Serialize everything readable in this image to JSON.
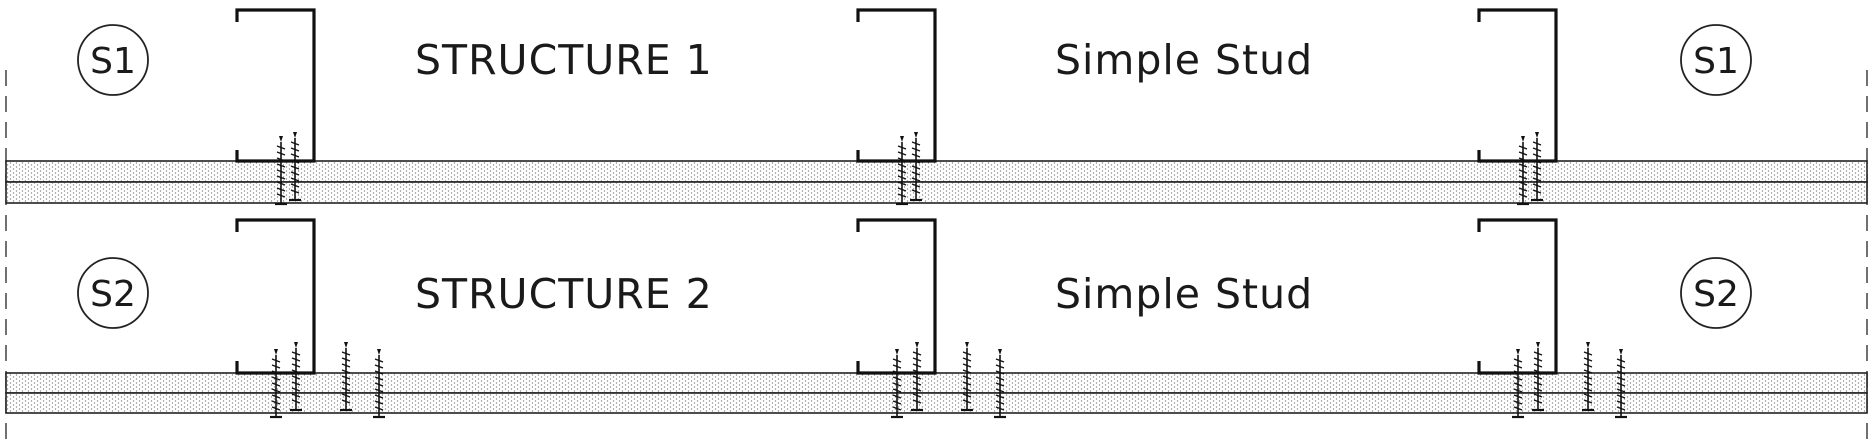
{
  "rows": [
    {
      "tag_left": "S1",
      "tag_right": "S1",
      "title": "STRUCTURE 1",
      "subtitle": "Simple Stud"
    },
    {
      "tag_left": "S2",
      "tag_right": "S2",
      "title": "STRUCTURE 2",
      "subtitle": "Simple Stud"
    }
  ]
}
